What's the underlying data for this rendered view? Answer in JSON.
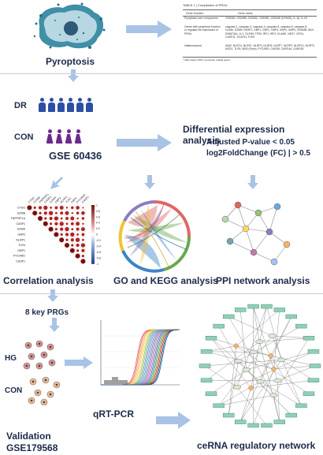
{
  "sections": {
    "pyroptosis_label": "Pyroptosis",
    "dr_label": "DR",
    "con_label": "CON",
    "gse_label": "GSE 60436",
    "diff_title": "Differential expression analysis",
    "diff_crit1": "Adjusted P-value < 0.05",
    "diff_crit2": "log2FoldChange (FC) | > 0.5",
    "correlation_label": "Correlation analysis",
    "go_kegg_label": "GO and KEGG analysis",
    "ppi_label": "PPI network analysis",
    "key_prgs_label": "8 key PRGs",
    "hg_label": "HG",
    "con2_label": "CON",
    "qrtpcr_label": "qRT-PCR",
    "validation_label": "Validation",
    "validation_gse": "GSE179568",
    "cerna_label": "ceRNA regulatory network"
  },
  "table": {
    "caption": "TABLE 1 | Compilation of PRGs.",
    "col1": "Gene function",
    "col2": "Gene name",
    "rows": [
      {
        "fn": "Pyroptosis core components",
        "genes": "GSDMA, GSDMB, GSDMC, GSDMD, GSDME (DFNA5), IL-1β, IL-18"
      },
      {
        "fn": "Genes with peripheral function or regulate the expression of PRGs",
        "genes": "caspase-1, caspase-3, caspase-4, caspase-5, caspase-6, caspase-8, GZMA, GZMB, PARP1, GBP1, GBP2, GBP3, GBP4, GBP5, GSDMB, BAX, DNMT3A1, IL-1, SLFN9, TP53, IRF1, IRF2, ELANE, NEK7, GPX4, CASP11, SCAF11, PJVK"
      },
      {
        "fn": "Inflammasome",
        "genes": "AIM2, NLRC4, NLRP1, NLRP3, NLRP6, NLRP7, NLRP9, NLRP12, NLRP3, NOD1, TLR4, ABI3 (Pyrin), PYCARD, CARD8, CARD16, CARD18"
      }
    ],
    "footnote": "* Abbreviation PRG: pyroptosis related genes"
  },
  "correlation": {
    "row_labels": [
      "CTSG",
      "GZMB",
      "TNFRSF1A",
      "CASP1",
      "GZMA",
      "GBP2",
      "NLRP1",
      "TLR4",
      "GBP1",
      "PYCARD",
      "CASP1"
    ],
    "scale": [
      "1",
      "0.8",
      "0.6",
      "0.4",
      "0.2",
      "0",
      "-0.2",
      "-0.4",
      "-0.6",
      "-0.8",
      "-1"
    ]
  },
  "colors": {
    "title_navy": "#1b2a4a",
    "arrow_blue": "#a9c3e4",
    "dr_blue": "#2d4ea5",
    "con_purple": "#6b2a8c",
    "corr_red": "#b22222",
    "network_node": "#8fd1b5"
  }
}
